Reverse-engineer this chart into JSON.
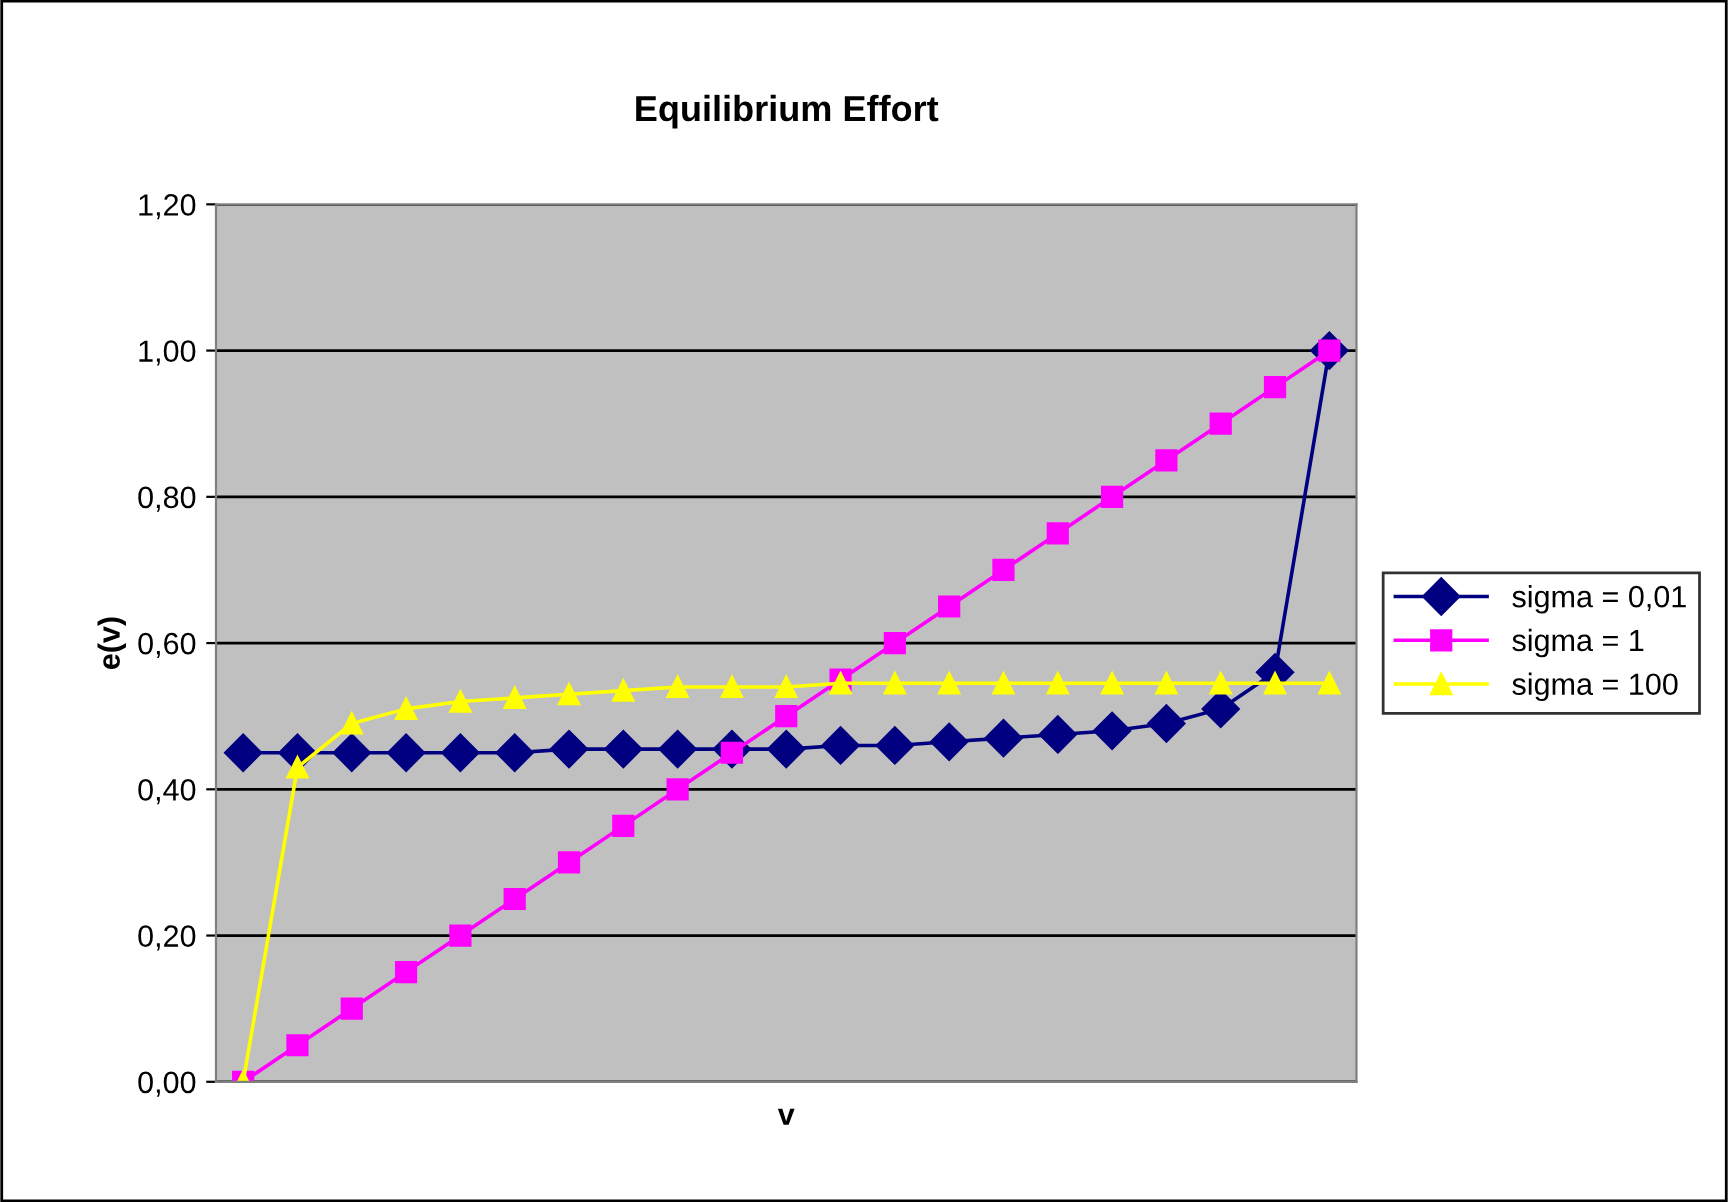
{
  "chart_data": {
    "type": "line",
    "title": "Equilibrium Effort",
    "xlabel": "v",
    "ylabel": "e(v)",
    "categories": [
      null,
      null,
      null,
      null,
      null,
      null,
      null,
      null,
      null,
      null,
      null,
      null,
      null,
      null,
      null,
      null,
      null,
      null,
      null,
      null,
      null
    ],
    "series": [
      {
        "name": "sigma = 0,01",
        "color": "#000080",
        "marker": "diamond",
        "values": [
          0.45,
          0.45,
          0.45,
          0.45,
          0.45,
          0.45,
          0.455,
          0.455,
          0.455,
          0.455,
          0.455,
          0.46,
          0.46,
          0.465,
          0.47,
          0.475,
          0.48,
          0.49,
          0.51,
          0.56,
          1.0
        ]
      },
      {
        "name": "sigma = 1",
        "color": "#ff00ff",
        "marker": "square",
        "values": [
          0.0,
          0.05,
          0.1,
          0.15,
          0.2,
          0.25,
          0.3,
          0.35,
          0.4,
          0.45,
          0.5,
          0.55,
          0.6,
          0.65,
          0.7,
          0.75,
          0.8,
          0.85,
          0.9,
          0.95,
          1.0
        ]
      },
      {
        "name": "sigma = 100",
        "color": "#ffff00",
        "marker": "triangle",
        "values": [
          0.0,
          0.43,
          0.49,
          0.51,
          0.52,
          0.525,
          0.53,
          0.535,
          0.54,
          0.54,
          0.54,
          0.545,
          0.545,
          0.545,
          0.545,
          0.545,
          0.545,
          0.545,
          0.545,
          0.545,
          0.545
        ]
      }
    ],
    "ylim": [
      0,
      1.2
    ],
    "yticks": [
      {
        "value": 0,
        "label": "0,00"
      },
      {
        "value": 0.2,
        "label": "0,20"
      },
      {
        "value": 0.4,
        "label": "0,40"
      },
      {
        "value": 0.6,
        "label": "0,60"
      },
      {
        "value": 0.8,
        "label": "0,80"
      },
      {
        "value": 1.0,
        "label": "1,00"
      },
      {
        "value": 1.2,
        "label": "1,20"
      }
    ],
    "grid": "y",
    "legend": "right",
    "line_style": "solid"
  }
}
